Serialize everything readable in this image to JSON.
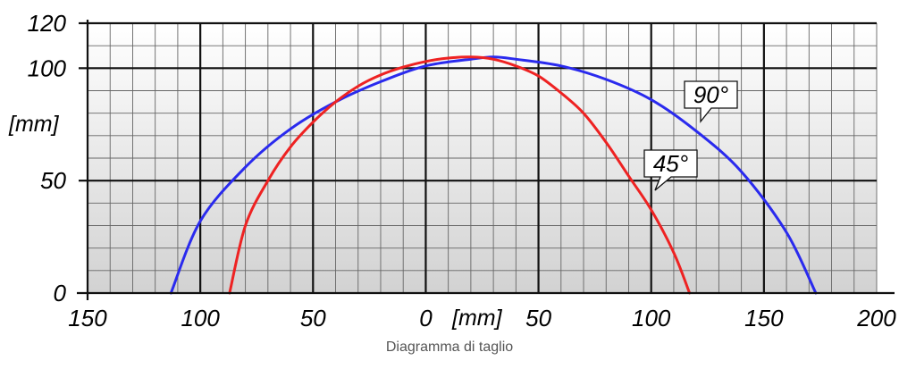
{
  "chart_data": {
    "type": "line",
    "xlabel": "[mm]",
    "ylabel": "[mm]",
    "xlim": [
      -150,
      200
    ],
    "ylim": [
      0,
      120
    ],
    "x_ticks": [
      -150,
      -100,
      -50,
      0,
      50,
      100,
      150,
      200
    ],
    "x_tick_labels": [
      "150",
      "100",
      "50",
      "0",
      "50",
      "100",
      "150",
      "200"
    ],
    "y_ticks": [
      0,
      50,
      100,
      120
    ],
    "y_tick_labels": [
      "0",
      "50",
      "100",
      "120"
    ],
    "grid": true,
    "series": [
      {
        "name": "90°",
        "color": "#2a2aee",
        "x": [
          -113,
          -100,
          -80,
          -60,
          -40,
          -20,
          0,
          20,
          30,
          40,
          60,
          80,
          100,
          120,
          140,
          160,
          173
        ],
        "y": [
          0,
          32,
          56,
          73,
          85,
          94,
          101,
          104,
          105,
          104,
          101,
          95,
          86,
          72,
          54,
          27,
          0
        ]
      },
      {
        "name": "45°",
        "color": "#ee2222",
        "x": [
          -87,
          -80,
          -70,
          -60,
          -50,
          -40,
          -30,
          -20,
          -10,
          0,
          10,
          20,
          30,
          40,
          50,
          60,
          70,
          80,
          90,
          100,
          110,
          117
        ],
        "y": [
          0,
          30,
          50,
          65,
          76,
          85,
          92,
          97,
          100.5,
          103,
          104.5,
          105,
          104,
          101,
          96.5,
          89,
          80,
          67,
          52,
          37,
          18,
          0
        ]
      }
    ],
    "annotations": [
      {
        "text": "90°",
        "series": "90°"
      },
      {
        "text": "45°",
        "series": "45°"
      }
    ]
  },
  "caption": "Diagramma di taglio"
}
